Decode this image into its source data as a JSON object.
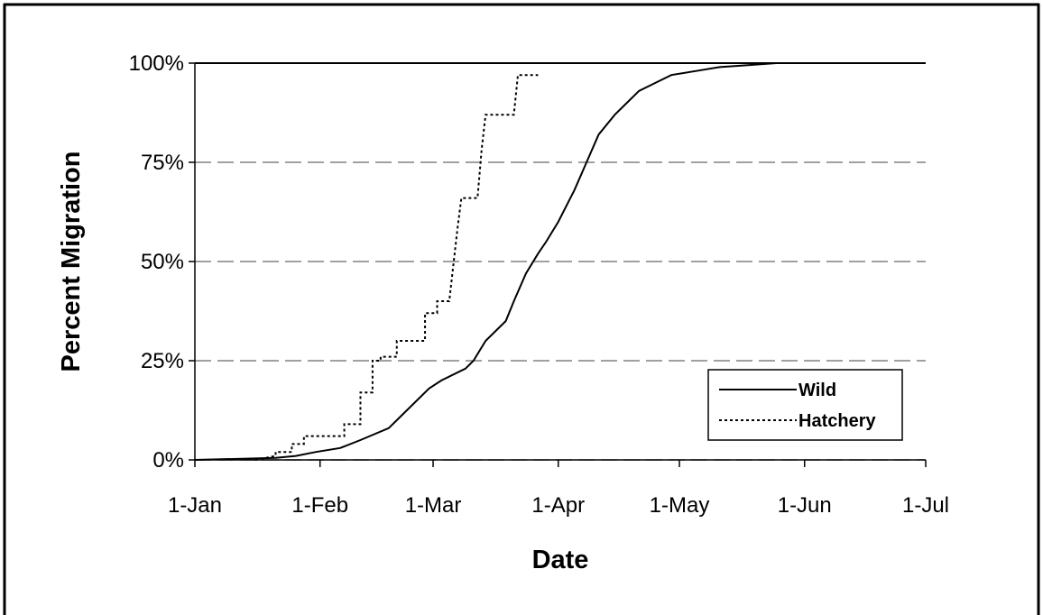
{
  "chart_data": {
    "type": "line",
    "x_label": "Date",
    "y_label": "Percent Migration",
    "xlim": [
      0,
      181
    ],
    "xticks": [
      {
        "value": 0,
        "label": "1-Jan"
      },
      {
        "value": 31,
        "label": "1-Feb"
      },
      {
        "value": 59,
        "label": "1-Mar"
      },
      {
        "value": 90,
        "label": "1-Apr"
      },
      {
        "value": 120,
        "label": "1-May"
      },
      {
        "value": 151,
        "label": "1-Jun"
      },
      {
        "value": 181,
        "label": "1-Jul"
      }
    ],
    "ylim": [
      0,
      100
    ],
    "yticks": [
      {
        "value": 0,
        "label": "0%"
      },
      {
        "value": 25,
        "label": "25%"
      },
      {
        "value": 50,
        "label": "50%"
      },
      {
        "value": 75,
        "label": "75%"
      },
      {
        "value": 100,
        "label": "100%"
      }
    ],
    "grid": true,
    "legend_position": "lower right",
    "series": [
      {
        "name": "Wild",
        "color": "#000000",
        "style": "solid",
        "x": [
          0,
          20,
          25,
          30,
          36,
          41,
          48,
          50,
          55,
          58,
          61,
          67,
          69,
          72,
          77,
          79,
          82,
          85,
          87,
          90,
          94,
          97,
          100,
          104,
          107,
          110,
          114,
          118,
          124,
          130,
          137,
          144,
          154
        ],
        "values": [
          0,
          0.5,
          1,
          2,
          3,
          5,
          8,
          10,
          15,
          18,
          20,
          23,
          25,
          30,
          35,
          40,
          47,
          52,
          55,
          60,
          68,
          75,
          82,
          87,
          90,
          93,
          95,
          97,
          98,
          99,
          99.5,
          100,
          100
        ]
      },
      {
        "name": "Hatchery",
        "color": "#000000",
        "style": "dotted",
        "x": [
          15,
          20,
          20,
          24,
          24,
          27,
          27,
          37,
          37,
          41,
          41,
          44,
          44,
          46,
          46,
          50,
          50,
          57,
          57,
          60,
          60,
          63,
          65,
          66,
          70,
          71,
          72,
          79,
          80,
          85
        ],
        "values": [
          0,
          1,
          2,
          2,
          4,
          4,
          6,
          6,
          9,
          9,
          17,
          17,
          25,
          25,
          26,
          26,
          30,
          30,
          37,
          37,
          40,
          40,
          58,
          66,
          66,
          78,
          87,
          87,
          97,
          97
        ]
      }
    ]
  }
}
